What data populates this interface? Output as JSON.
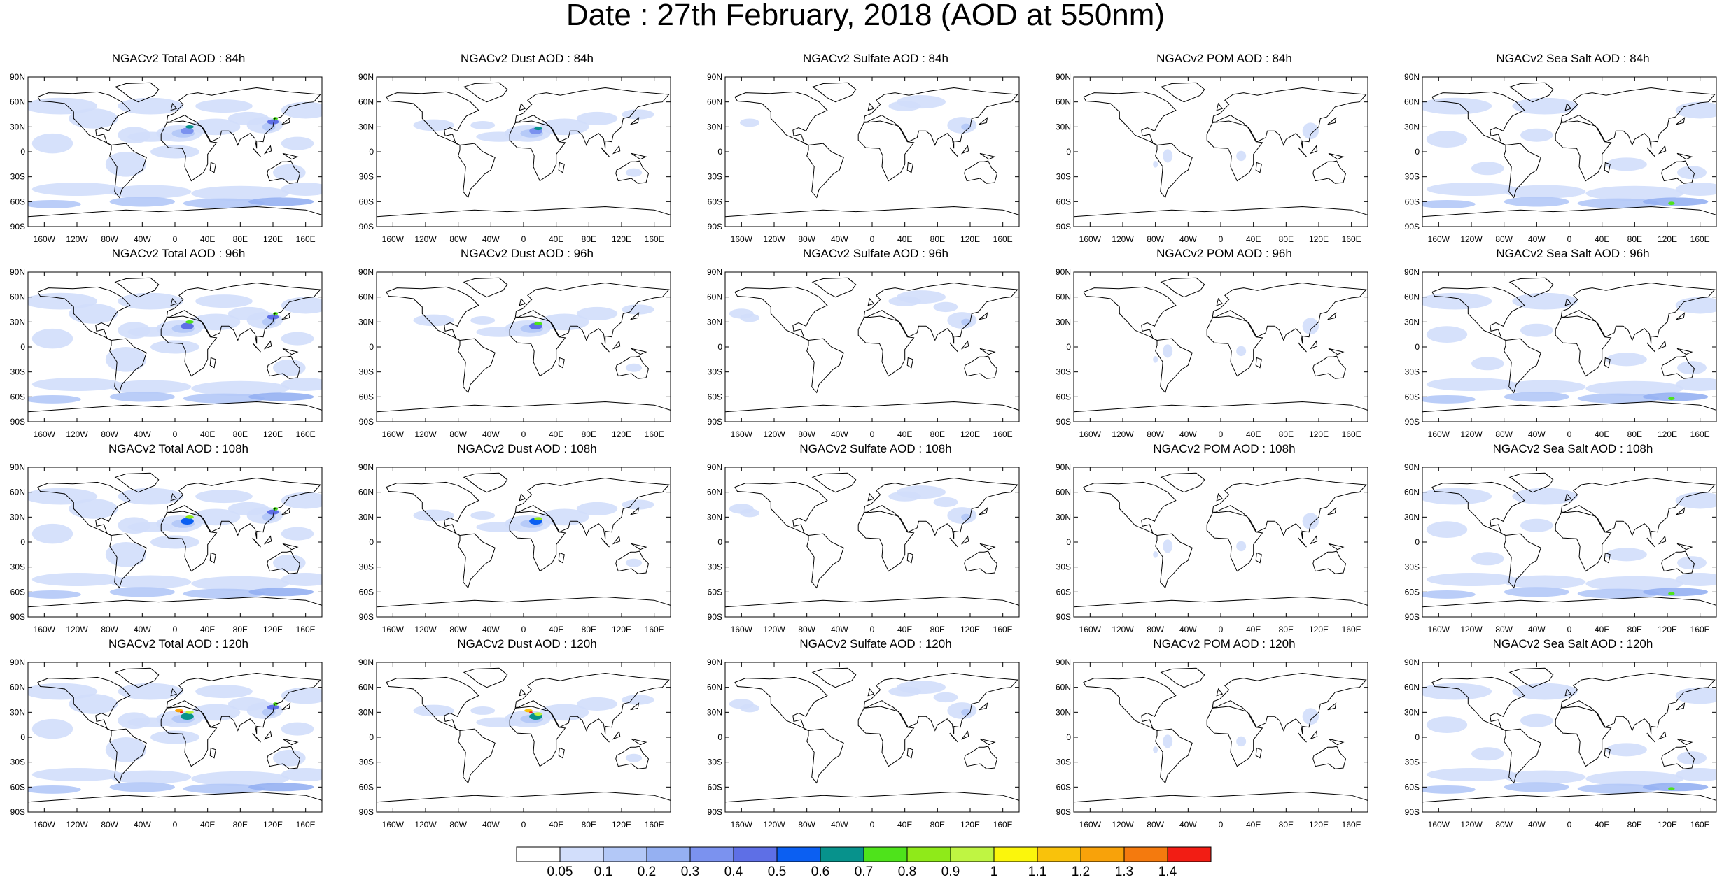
{
  "title": "Date : 27th February, 2018 (AOD at 550nm)",
  "panel_titles": [
    [
      "NGACv2 Total AOD : 84h",
      "NGACv2 Dust AOD : 84h",
      "NGACv2 Sulfate AOD : 84h",
      "NGACv2 POM AOD : 84h",
      "NGACv2 Sea Salt AOD : 84h"
    ],
    [
      "NGACv2 Total AOD : 96h",
      "NGACv2 Dust AOD : 96h",
      "NGACv2 Sulfate AOD : 96h",
      "NGACv2 POM AOD : 96h",
      "NGACv2 Sea Salt AOD : 96h"
    ],
    [
      "NGACv2 Total AOD : 108h",
      "NGACv2 Dust AOD : 108h",
      "NGACv2 Sulfate AOD : 108h",
      "NGACv2 POM AOD : 108h",
      "NGACv2 Sea Salt AOD : 108h"
    ],
    [
      "NGACv2 Total AOD : 120h",
      "NGACv2 Dust AOD : 120h",
      "NGACv2 Sulfate AOD : 120h",
      "NGACv2 POM AOD : 120h",
      "NGACv2 Sea Salt  AOD : 120h"
    ]
  ],
  "lat_labels": [
    "90N",
    "60N",
    "30N",
    "0",
    "30S",
    "60S",
    "90S"
  ],
  "lon_labels": [
    "160W",
    "120W",
    "80W",
    "40W",
    "0",
    "40E",
    "80E",
    "120E",
    "160E"
  ],
  "colorbar": {
    "labels": [
      "0.05",
      "0.1",
      "0.2",
      "0.3",
      "0.4",
      "0.5",
      "0.6",
      "0.7",
      "0.8",
      "0.9",
      "1",
      "1.1",
      "1.2",
      "1.3",
      "1.4"
    ],
    "colors": [
      "#ffffff",
      "#d2defb",
      "#b3c8f7",
      "#95b0f2",
      "#7b92ef",
      "#5e6fe6",
      "#0b5ff2",
      "#07928c",
      "#4ee31b",
      "#8fea19",
      "#bff542",
      "#fbf60c",
      "#f9c20b",
      "#f8a20a",
      "#f47a0e",
      "#f21d14"
    ]
  }
}
